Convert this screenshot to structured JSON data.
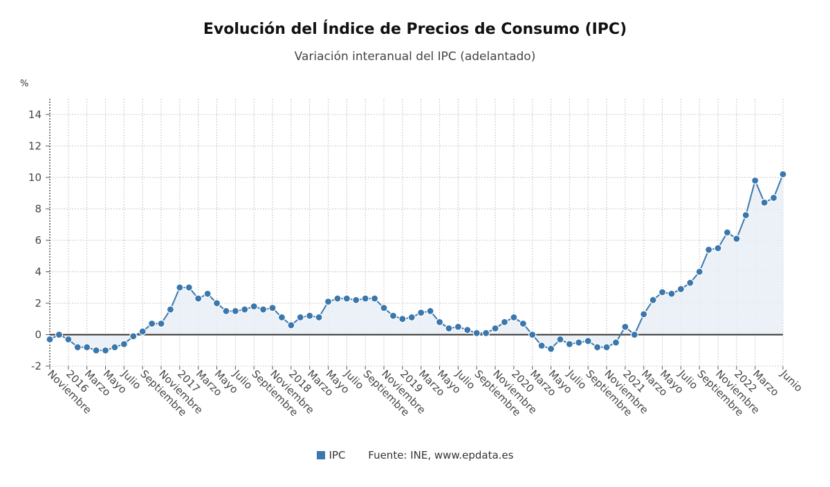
{
  "chart_data": {
    "type": "line",
    "title": "Evolución del Índice de Precios de Consumo (IPC)",
    "subtitle": "Variación interanual del IPC (adelantado)",
    "ylabel": "%",
    "ylim": [
      -2,
      15
    ],
    "yticks": [
      -2,
      0,
      2,
      4,
      6,
      8,
      10,
      12,
      14
    ],
    "grid": true,
    "area_fill": true,
    "colors": {
      "series": "#3a77ad",
      "fill": "#e9eff6",
      "zero_line": "#333333",
      "grid": "#c8c8c8"
    },
    "x_tick_labels": [
      "Noviembre",
      "2016",
      "Marzo",
      "Mayo",
      "Julio",
      "Septiembre",
      "Noviembre",
      "2017",
      "Marzo",
      "Mayo",
      "Julio",
      "Septiembre",
      "Noviembre",
      "2018",
      "Marzo",
      "Mayo",
      "Julio",
      "Septiembre",
      "Noviembre",
      "2019",
      "Marzo",
      "Mayo",
      "Julio",
      "Septiembre",
      "Noviembre",
      "2020",
      "Marzo",
      "Mayo",
      "Julio",
      "Septiembre",
      "Noviembre",
      "2021",
      "Marzo",
      "Mayo",
      "Julio",
      "Septiembre",
      "Noviembre",
      "2022",
      "Marzo",
      "Junio"
    ],
    "x_tick_months": [
      0,
      2,
      4,
      6,
      8,
      10,
      12,
      14,
      16,
      18,
      20,
      22,
      24,
      26,
      28,
      30,
      32,
      34,
      36,
      38,
      40,
      42,
      44,
      46,
      48,
      50,
      52,
      54,
      56,
      58,
      60,
      62,
      64,
      66,
      68,
      70,
      72,
      74,
      76,
      79
    ],
    "series": [
      {
        "name": "IPC",
        "values": [
          -0.3,
          0.0,
          -0.3,
          -0.8,
          -0.8,
          -1.0,
          -1.0,
          -0.8,
          -0.6,
          -0.1,
          0.2,
          0.7,
          0.7,
          1.6,
          3.0,
          3.0,
          2.3,
          2.6,
          2.0,
          1.5,
          1.5,
          1.6,
          1.8,
          1.6,
          1.7,
          1.1,
          0.6,
          1.1,
          1.2,
          1.1,
          2.1,
          2.3,
          2.3,
          2.2,
          2.3,
          2.3,
          1.7,
          1.2,
          1.0,
          1.1,
          1.4,
          1.5,
          0.8,
          0.4,
          0.5,
          0.3,
          0.1,
          0.1,
          0.4,
          0.8,
          1.1,
          0.7,
          0.0,
          -0.7,
          -0.9,
          -0.3,
          -0.6,
          -0.5,
          -0.4,
          -0.8,
          -0.8,
          -0.5,
          0.5,
          0.0,
          1.3,
          2.2,
          2.7,
          2.6,
          2.9,
          3.3,
          4.0,
          5.4,
          5.5,
          6.5,
          6.1,
          7.6,
          9.8,
          8.4,
          8.7,
          10.2
        ]
      }
    ]
  },
  "legend": {
    "label": "IPC"
  },
  "source": "Fuente: INE, www.epdata.es"
}
